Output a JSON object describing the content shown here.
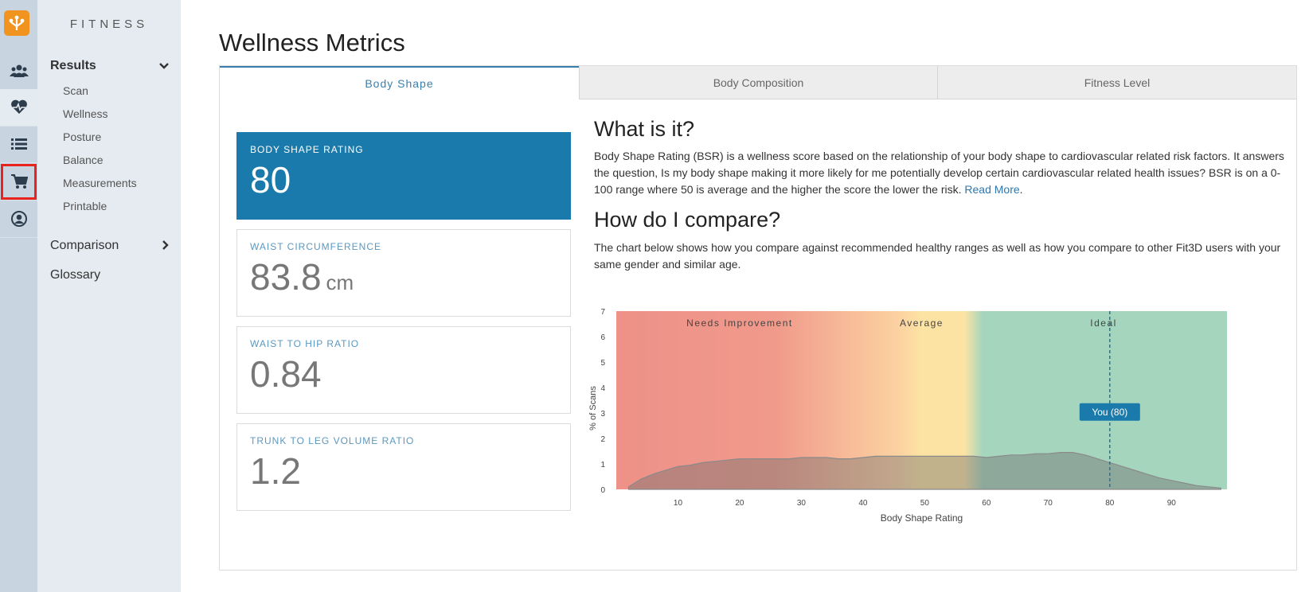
{
  "app": {
    "section_title": "FITNESS"
  },
  "nav": {
    "results": "Results",
    "results_items": [
      "Scan",
      "Wellness",
      "Posture",
      "Balance",
      "Measurements",
      "Printable"
    ],
    "comparison": "Comparison",
    "glossary": "Glossary"
  },
  "rail": {
    "icons": [
      "app-logo-icon",
      "users-icon",
      "heart-pulse-icon",
      "list-icon",
      "cart-icon",
      "user-circle-icon"
    ]
  },
  "page": {
    "title": "Wellness Metrics"
  },
  "tabs": [
    {
      "label": "Body Shape"
    },
    {
      "label": "Body Composition"
    },
    {
      "label": "Fitness Level"
    }
  ],
  "cards": {
    "bsr": {
      "label": "BODY SHAPE RATING",
      "value": "80"
    },
    "waist": {
      "label": "WAIST CIRCUMFERENCE",
      "value": "83.8",
      "unit": "cm"
    },
    "whr": {
      "label": "WAIST TO HIP RATIO",
      "value": "0.84"
    },
    "tlv": {
      "label": "TRUNK TO LEG VOLUME RATIO",
      "value": "1.2"
    }
  },
  "what": {
    "heading": "What is it?",
    "text": "Body Shape Rating (BSR) is a wellness score based on the relationship of your body shape to cardiovascular related risk factors. It answers the question, Is my body shape making it more likely for me potentially develop certain cardiovascular related health issues? BSR is on a 0-100 range where 50 is average and the higher the score the lower the risk.",
    "link": "Read More",
    "tail": "."
  },
  "compare": {
    "heading": "How do I compare?",
    "text": "The chart below shows how you compare against recommended healthy ranges as well as how you compare to other Fit3D users with your same gender and similar age."
  },
  "chart_data": {
    "type": "area",
    "xlabel": "Body Shape Rating",
    "ylabel": "% of Scans",
    "xlim": [
      0,
      99
    ],
    "ylim": [
      0,
      7
    ],
    "xticks": [
      10,
      20,
      30,
      40,
      50,
      60,
      70,
      80,
      90
    ],
    "yticks": [
      0,
      1,
      2,
      3,
      4,
      5,
      6,
      7
    ],
    "zones": [
      {
        "label": "Needs Improvement",
        "from": 0,
        "to": 40
      },
      {
        "label": "Average",
        "from": 40,
        "to": 59
      },
      {
        "label": "Ideal",
        "from": 59,
        "to": 99
      }
    ],
    "marker": {
      "label": "You (80)",
      "x": 80
    },
    "x": [
      2,
      4,
      6,
      8,
      10,
      12,
      14,
      16,
      18,
      20,
      22,
      24,
      26,
      28,
      30,
      32,
      34,
      36,
      38,
      40,
      42,
      44,
      46,
      48,
      50,
      52,
      54,
      56,
      58,
      60,
      62,
      64,
      66,
      68,
      70,
      72,
      74,
      76,
      78,
      80,
      82,
      84,
      86,
      88,
      90,
      92,
      94,
      96,
      98
    ],
    "y": [
      0.1,
      0.4,
      0.6,
      0.75,
      0.9,
      0.95,
      1.05,
      1.1,
      1.15,
      1.2,
      1.2,
      1.2,
      1.2,
      1.2,
      1.25,
      1.25,
      1.25,
      1.2,
      1.2,
      1.25,
      1.3,
      1.3,
      1.3,
      1.3,
      1.3,
      1.3,
      1.3,
      1.3,
      1.3,
      1.25,
      1.3,
      1.35,
      1.35,
      1.4,
      1.4,
      1.45,
      1.45,
      1.35,
      1.2,
      1.05,
      0.9,
      0.75,
      0.6,
      0.45,
      0.35,
      0.25,
      0.15,
      0.1,
      0.05
    ],
    "grid": false
  },
  "colors": {
    "accent": "#1a7aab",
    "zone_red": "#f0948b",
    "zone_yellow": "#fde3a3",
    "zone_green": "#a5d5bd",
    "area_fill": "#7b7b7b"
  }
}
